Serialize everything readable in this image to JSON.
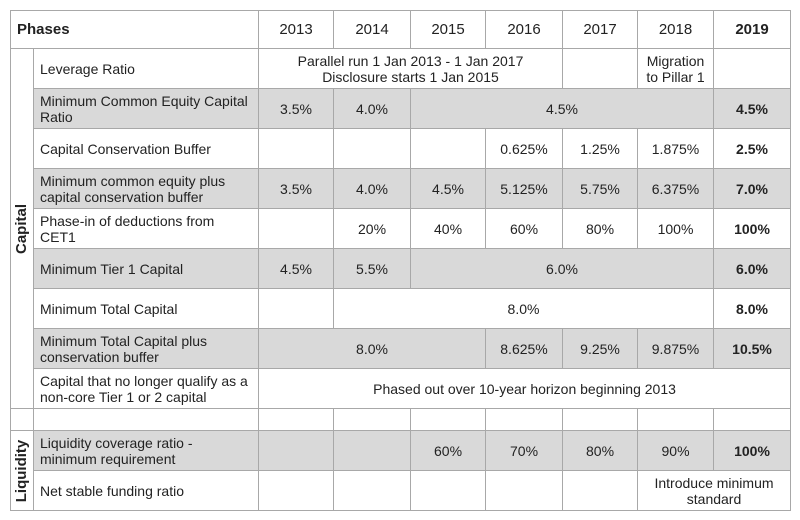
{
  "header": {
    "title": "Phases",
    "years": [
      "2013",
      "2014",
      "2015",
      "2016",
      "2017",
      "2018",
      "2019"
    ]
  },
  "groups": [
    {
      "label": "Capital",
      "rows": [
        {
          "label": "Leverage Ratio",
          "cells": [
            "Parallel run 1 Jan 2013 - 1 Jan 2017",
            "Disclosure starts 1 Jan 2015",
            "Migration to Pillar 1"
          ]
        },
        {
          "label": "Minimum Common Equity Capital Ratio",
          "cells": [
            "3.5%",
            "4.0%",
            "4.5%",
            "4.5%"
          ]
        },
        {
          "label": "Capital Conservation Buffer",
          "cells": [
            "0.625%",
            "1.25%",
            "1.875%",
            "2.5%"
          ]
        },
        {
          "label": "Minimum common equity plus capital conservation buffer",
          "cells": [
            "3.5%",
            "4.0%",
            "4.5%",
            "5.125%",
            "5.75%",
            "6.375%",
            "7.0%"
          ]
        },
        {
          "label": "Phase-in of deductions from CET1",
          "cells": [
            "20%",
            "40%",
            "60%",
            "80%",
            "100%",
            "100%"
          ]
        },
        {
          "label": "Minimum Tier 1 Capital",
          "cells": [
            "4.5%",
            "5.5%",
            "6.0%",
            "6.0%"
          ]
        },
        {
          "label": "Minimum Total Capital",
          "cells": [
            "8.0%",
            "8.0%"
          ]
        },
        {
          "label": "Minimum Total Capital plus conservation buffer",
          "cells": [
            "8.0%",
            "8.625%",
            "9.25%",
            "9.875%",
            "10.5%"
          ]
        },
        {
          "label": "Capital that no longer qualify as a non-core Tier 1 or 2 capital",
          "cells": [
            "Phased out over 10-year horizon beginning 2013"
          ]
        }
      ]
    },
    {
      "label": "Liquidity",
      "rows": [
        {
          "label": "Liquidity coverage ratio - minimum requirement",
          "cells": [
            "60%",
            "70%",
            "80%",
            "90%",
            "100%"
          ]
        },
        {
          "label": "Net stable funding ratio",
          "cells": [
            "Introduce minimum standard"
          ]
        }
      ]
    }
  ]
}
